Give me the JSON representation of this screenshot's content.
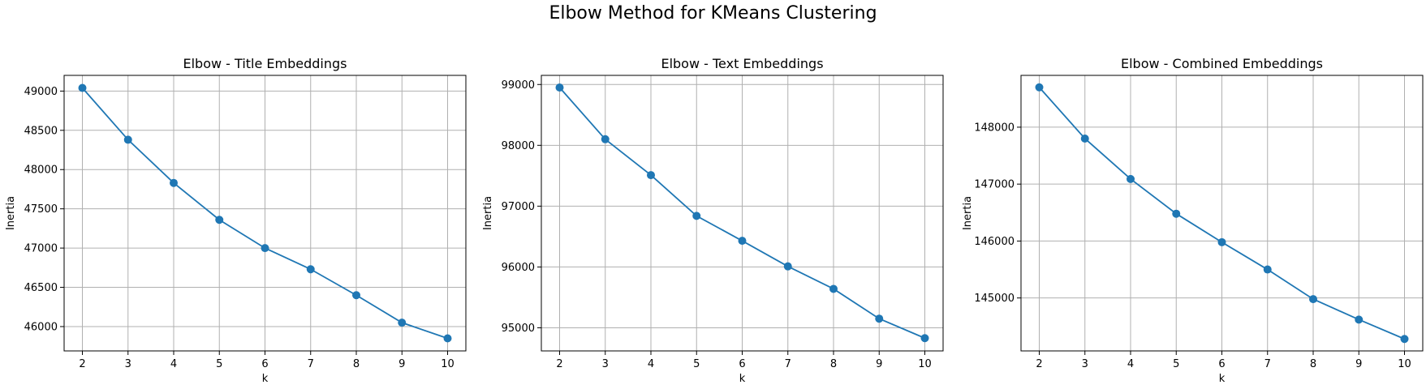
{
  "figure": {
    "title": "Elbow Method for KMeans Clustering"
  },
  "chart_data": [
    {
      "type": "line",
      "title": "Elbow - Title Embeddings",
      "xlabel": "k",
      "ylabel": "Inertia",
      "x": [
        2,
        3,
        4,
        5,
        6,
        7,
        8,
        9,
        10
      ],
      "series": [
        {
          "values": [
            49040,
            48380,
            47830,
            47360,
            47000,
            46730,
            46400,
            46050,
            45850
          ],
          "color": "#1f77b4",
          "marker": "circle"
        }
      ],
      "xticks": [
        2,
        3,
        4,
        5,
        6,
        7,
        8,
        9,
        10
      ],
      "yticks": [
        46000,
        46500,
        47000,
        47500,
        48000,
        48500,
        49000
      ],
      "xlim": [
        1.6,
        10.4
      ],
      "ylim": [
        45690,
        49200
      ],
      "grid": true
    },
    {
      "type": "line",
      "title": "Elbow - Text Embeddings",
      "xlabel": "k",
      "ylabel": "Inertia",
      "x": [
        2,
        3,
        4,
        5,
        6,
        7,
        8,
        9,
        10
      ],
      "series": [
        {
          "values": [
            98950,
            98100,
            97510,
            96840,
            96430,
            96010,
            95640,
            95150,
            94830
          ],
          "color": "#1f77b4",
          "marker": "circle"
        }
      ],
      "xticks": [
        2,
        3,
        4,
        5,
        6,
        7,
        8,
        9,
        10
      ],
      "yticks": [
        95000,
        96000,
        97000,
        98000,
        99000
      ],
      "xlim": [
        1.6,
        10.4
      ],
      "ylim": [
        94620,
        99150
      ],
      "grid": true
    },
    {
      "type": "line",
      "title": "Elbow - Combined Embeddings",
      "xlabel": "k",
      "ylabel": "Inertia",
      "x": [
        2,
        3,
        4,
        5,
        6,
        7,
        8,
        9,
        10
      ],
      "series": [
        {
          "values": [
            148700,
            147800,
            147090,
            146480,
            145980,
            145500,
            144980,
            144620,
            144280
          ],
          "color": "#1f77b4",
          "marker": "circle"
        }
      ],
      "xticks": [
        2,
        3,
        4,
        5,
        6,
        7,
        8,
        9,
        10
      ],
      "yticks": [
        145000,
        146000,
        147000,
        148000
      ],
      "xlim": [
        1.6,
        10.4
      ],
      "ylim": [
        144070,
        148910
      ],
      "grid": true
    }
  ]
}
